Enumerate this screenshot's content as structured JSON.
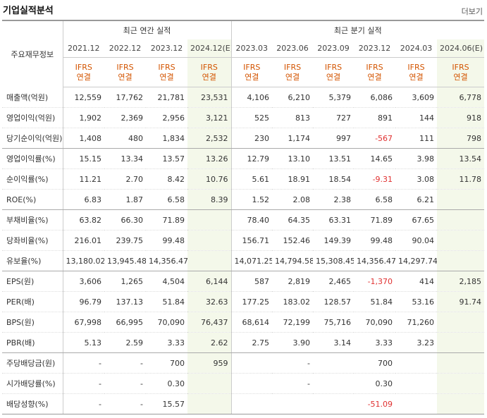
{
  "title": "기업실적분석",
  "more_label": "더보기",
  "header": {
    "label_col": "주요재무정보",
    "annual_group": "최근 연간 실적",
    "quarter_group": "최근 분기 실적",
    "periods": [
      "2021.12",
      "2022.12",
      "2023.12",
      "2024.12(E)",
      "2023.03",
      "2023.06",
      "2023.09",
      "2023.12",
      "2024.03",
      "2024.06(E)"
    ],
    "basis_top": "IFRS",
    "basis_bottom": "연결"
  },
  "rows": [
    {
      "label": "매출액(억원)",
      "values": [
        "12,559",
        "17,762",
        "21,781",
        "23,531",
        "4,106",
        "6,210",
        "5,379",
        "6,086",
        "3,609",
        "6,778"
      ]
    },
    {
      "label": "영업이익(억원)",
      "values": [
        "1,902",
        "2,369",
        "2,956",
        "3,121",
        "525",
        "813",
        "727",
        "891",
        "144",
        "918"
      ]
    },
    {
      "label": "당기순이익(억원)",
      "values": [
        "1,408",
        "480",
        "1,834",
        "2,532",
        "230",
        "1,174",
        "997",
        "-567",
        "111",
        "798"
      ]
    },
    {
      "label": "영업이익률(%)",
      "values": [
        "15.15",
        "13.34",
        "13.57",
        "13.26",
        "12.79",
        "13.10",
        "13.51",
        "14.65",
        "3.98",
        "13.54"
      ]
    },
    {
      "label": "순이익률(%)",
      "values": [
        "11.21",
        "2.70",
        "8.42",
        "10.76",
        "5.61",
        "18.91",
        "18.54",
        "-9.31",
        "3.08",
        "11.78"
      ]
    },
    {
      "label": "ROE(%)",
      "values": [
        "6.83",
        "1.87",
        "6.58",
        "8.39",
        "1.52",
        "2.08",
        "2.38",
        "6.58",
        "6.21",
        ""
      ]
    },
    {
      "label": "부채비율(%)",
      "values": [
        "63.82",
        "66.30",
        "71.89",
        "",
        "78.40",
        "64.35",
        "63.31",
        "71.89",
        "67.65",
        ""
      ]
    },
    {
      "label": "당좌비율(%)",
      "values": [
        "216.01",
        "239.75",
        "99.48",
        "",
        "156.71",
        "152.46",
        "149.39",
        "99.48",
        "90.04",
        ""
      ]
    },
    {
      "label": "유보율(%)",
      "values": [
        "13,180.02",
        "13,945.48",
        "14,356.47",
        "",
        "14,071.25",
        "14,794.58",
        "15,308.45",
        "14,356.47",
        "14,297.74",
        ""
      ]
    },
    {
      "label": "EPS(원)",
      "values": [
        "3,606",
        "1,265",
        "4,504",
        "6,144",
        "587",
        "2,819",
        "2,465",
        "-1,370",
        "414",
        "2,185"
      ]
    },
    {
      "label": "PER(배)",
      "values": [
        "96.79",
        "137.13",
        "51.84",
        "32.63",
        "177.25",
        "183.02",
        "128.57",
        "51.84",
        "53.16",
        "91.74"
      ]
    },
    {
      "label": "BPS(원)",
      "values": [
        "67,998",
        "66,995",
        "70,090",
        "76,437",
        "68,614",
        "72,199",
        "75,716",
        "70,090",
        "71,260",
        ""
      ]
    },
    {
      "label": "PBR(배)",
      "values": [
        "5.13",
        "2.59",
        "3.33",
        "2.62",
        "2.75",
        "3.90",
        "3.14",
        "3.33",
        "3.23",
        ""
      ]
    },
    {
      "label": "주당배당금(원)",
      "values": [
        "-",
        "-",
        "700",
        "959",
        "",
        "-",
        "",
        "700",
        "",
        ""
      ]
    },
    {
      "label": "시가배당률(%)",
      "values": [
        "-",
        "-",
        "0.30",
        "",
        "",
        "-",
        "",
        "0.30",
        "",
        ""
      ]
    },
    {
      "label": "배당성향(%)",
      "values": [
        "-",
        "-",
        "15.57",
        "",
        "",
        "",
        "",
        "-51.09",
        "",
        ""
      ]
    }
  ],
  "colors": {
    "estimate_bg": "#f4f8ea",
    "basis": "#d35400",
    "negative": "#e03030"
  }
}
